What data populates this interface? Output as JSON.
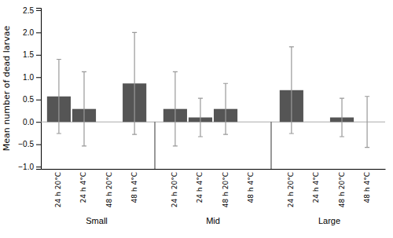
{
  "chart_data": {
    "type": "bar",
    "y_label": "Mean number of dead larvae",
    "categories": [
      "Small",
      "Mid",
      "Large"
    ],
    "series": [
      {
        "name": "24 h 20°C",
        "color": "#555555",
        "values": [
          0.57,
          0.29,
          0.71
        ],
        "errors": [
          0.83,
          0.83,
          0.97
        ]
      },
      {
        "name": "24 h 4°C",
        "color": "#555555",
        "values": [
          0.29,
          0.1,
          0.0
        ],
        "errors": [
          0.83,
          0.43,
          0.0
        ]
      },
      {
        "name": "48 h 20°C",
        "color": "#555555",
        "values": [
          0.0,
          0.29,
          0.1
        ],
        "errors": [
          0.0,
          0.57,
          0.43
        ]
      },
      {
        "name": "48 h 4°C",
        "color": "#555555",
        "values": [
          0.86,
          0.0,
          0.0
        ],
        "errors": [
          1.14,
          0.0,
          0.57
        ]
      }
    ],
    "ylim": [
      -1.05,
      2.55
    ],
    "yticks": [
      {
        "value": -1.0,
        "label": "−1.0"
      },
      {
        "value": -0.5,
        "label": "−0.5"
      },
      {
        "value": 0.0,
        "label": "0.0"
      },
      {
        "value": 0.5,
        "label": "0.5"
      },
      {
        "value": 1.0,
        "label": "1.0"
      },
      {
        "value": 1.5,
        "label": "1.5"
      },
      {
        "value": 2.0,
        "label": "2.0"
      },
      {
        "value": 2.5,
        "label": "2.5"
      }
    ],
    "grid": false
  }
}
